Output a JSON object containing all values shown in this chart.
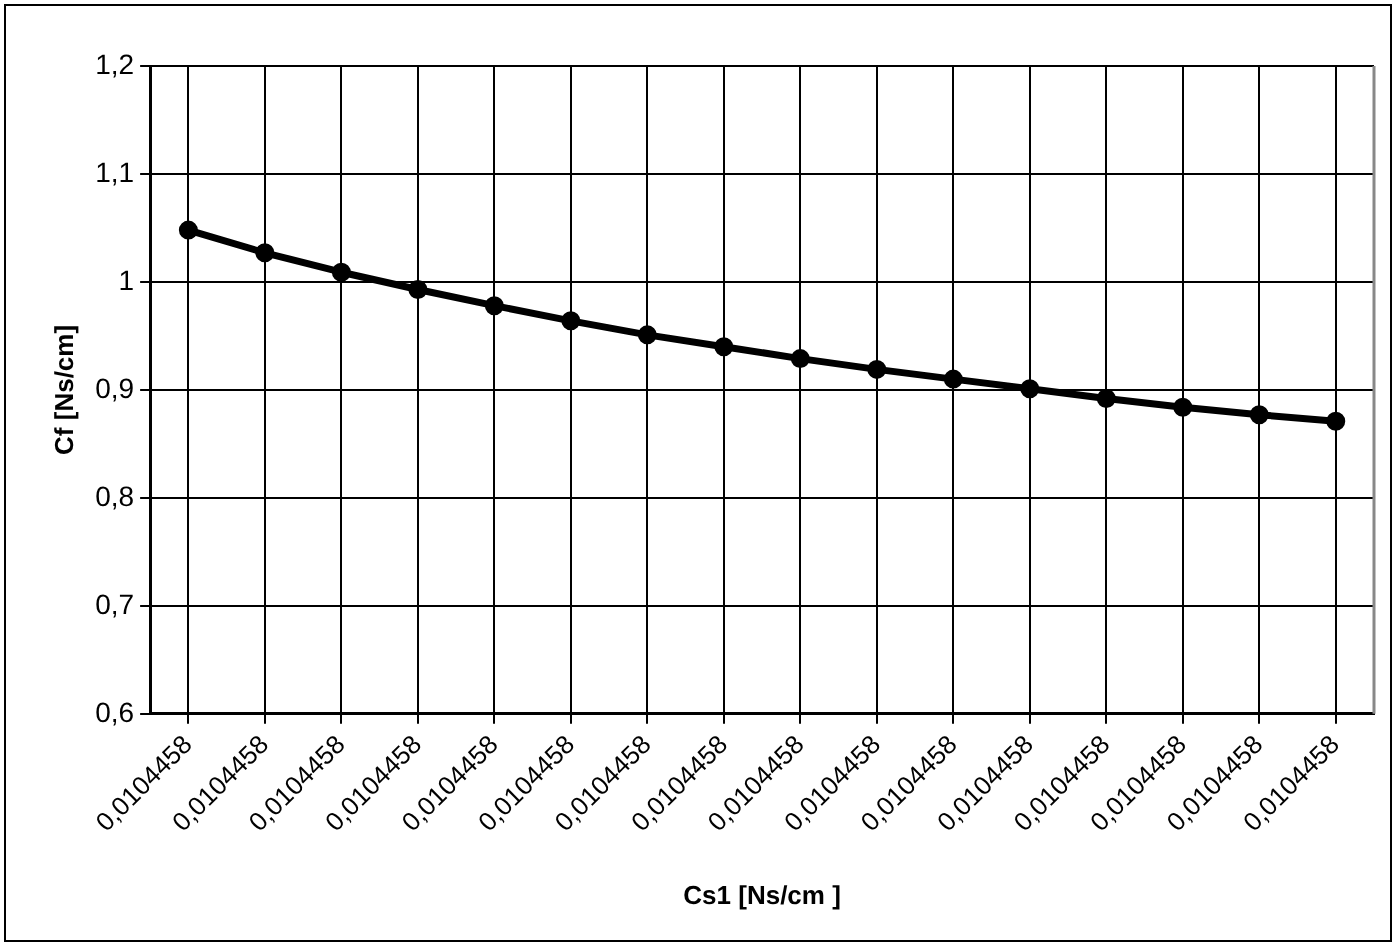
{
  "chart_data": {
    "type": "line",
    "xlabel": "Cs1 [Ns/cm ]",
    "ylabel": "Cf [Ns/cm]",
    "categories": [
      "0,0104458",
      "0,0104458",
      "0,0104458",
      "0,0104458",
      "0,0104458",
      "0,0104458",
      "0,0104458",
      "0,0104458",
      "0,0104458",
      "0,0104458",
      "0,0104458",
      "0,0104458",
      "0,0104458",
      "0,0104458",
      "0,0104458",
      "0,0104458"
    ],
    "series": [
      {
        "color": "#000000",
        "values": [
          1.048,
          1.027,
          1.009,
          0.993,
          0.978,
          0.964,
          0.951,
          0.94,
          0.929,
          0.919,
          0.91,
          0.901,
          0.892,
          0.884,
          0.877,
          0.871
        ]
      }
    ],
    "ylim": [
      0.6,
      1.2
    ],
    "yticks": [
      {
        "value": 0.6,
        "label": "0,6"
      },
      {
        "value": 0.7,
        "label": "0,7"
      },
      {
        "value": 0.8,
        "label": "0,8"
      },
      {
        "value": 0.9,
        "label": "0,9"
      },
      {
        "value": 1,
        "label": "1"
      },
      {
        "value": 1.1,
        "label": "1,1"
      },
      {
        "value": 1.2,
        "label": "1,2"
      }
    ],
    "grid": true,
    "legend": false,
    "marker": "circle",
    "line_style": "solid"
  }
}
